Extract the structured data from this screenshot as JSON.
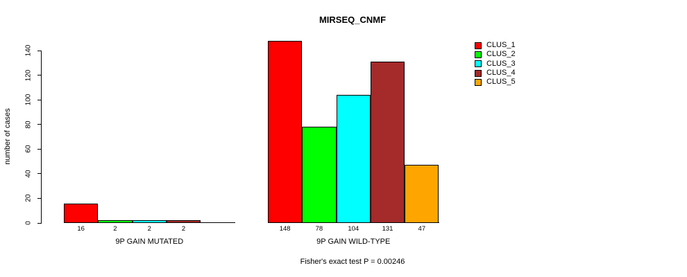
{
  "chart_data": {
    "type": "bar",
    "title": "MIRSEQ_CNMF",
    "ylabel": "number of cases",
    "ylim": [
      0,
      140
    ],
    "yticks": [
      0,
      20,
      40,
      60,
      80,
      100,
      120,
      140
    ],
    "groups": [
      "9P GAIN MUTATED",
      "9P GAIN WILD-TYPE"
    ],
    "series": [
      {
        "name": "CLUS_1",
        "color": "#ff0000",
        "values": [
          16,
          148
        ]
      },
      {
        "name": "CLUS_2",
        "color": "#00ff00",
        "values": [
          2,
          78
        ]
      },
      {
        "name": "CLUS_3",
        "color": "#00ffff",
        "values": [
          2,
          104
        ]
      },
      {
        "name": "CLUS_4",
        "color": "#a52a2a",
        "values": [
          2,
          131
        ]
      },
      {
        "name": "CLUS_5",
        "color": "#ffa500",
        "values": [
          0,
          47
        ]
      }
    ],
    "bar_value_labels": [
      [
        "16",
        "2",
        "2",
        "2",
        ""
      ],
      [
        "148",
        "78",
        "104",
        "131",
        "47"
      ]
    ],
    "legend_position": "top-right",
    "legend_entries": [
      "CLUS_1",
      "CLUS_2",
      "CLUS_3",
      "CLUS_4",
      "CLUS_5"
    ],
    "annotation": "Fisher's exact test P = 0.00246",
    "grid": false,
    "axis_color": "#000000",
    "background": "#ffffff"
  }
}
